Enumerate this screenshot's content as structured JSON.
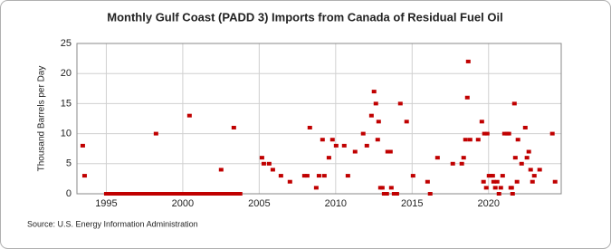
{
  "chart_data": {
    "type": "scatter",
    "title": "Monthly Gulf Coast (PADD 3) Imports from Canada of Residual Fuel Oil",
    "y_label": "Thousand Barrels per Day",
    "source": "Source: U.S. Energy Information Administration",
    "series": [
      {
        "color": "#c00000",
        "x": [
          1993.46,
          1993.58,
          1995.0,
          1995.25,
          1995.5,
          1995.75,
          1996.0,
          1996.25,
          1996.5,
          1996.75,
          1997.0,
          1997.25,
          1997.5,
          1997.75,
          1998.0,
          1998.25,
          1998.5,
          1998.75,
          1999.0,
          1999.25,
          1999.5,
          1999.75,
          2000.0,
          2000.25,
          2000.5,
          2000.75,
          2001.0,
          2001.25,
          2001.5,
          2001.75,
          2002.0,
          2002.25,
          2002.5,
          2002.75,
          2003.0,
          2003.25,
          2003.5,
          2003.75,
          1998.25,
          2000.44,
          2002.51,
          2003.34,
          2005.18,
          2005.3,
          2005.65,
          2005.89,
          2006.42,
          2007.01,
          2007.96,
          2008.14,
          2008.31,
          2008.73,
          2008.91,
          2009.14,
          2009.26,
          2009.56,
          2009.79,
          2010.03,
          2010.56,
          2010.8,
          2011.27,
          2011.8,
          2012.04,
          2012.34,
          2012.51,
          2012.63,
          2012.75,
          2012.81,
          2012.93,
          2013.05,
          2013.17,
          2013.34,
          2013.4,
          2013.58,
          2013.64,
          2013.82,
          2014.0,
          2014.23,
          2014.64,
          2015.06,
          2016.01,
          2016.18,
          2016.66,
          2017.66,
          2018.25,
          2018.37,
          2018.49,
          2018.61,
          2018.67,
          2018.79,
          2019.32,
          2019.56,
          2019.67,
          2019.73,
          2019.85,
          2019.91,
          2020.03,
          2020.15,
          2020.27,
          2020.33,
          2020.44,
          2020.56,
          2020.68,
          2020.8,
          2020.92,
          2021.04,
          2021.21,
          2021.33,
          2021.45,
          2021.51,
          2021.57,
          2021.69,
          2021.75,
          2021.86,
          2021.92,
          2022.16,
          2022.4,
          2022.51,
          2022.63,
          2022.75,
          2022.87,
          2022.99,
          2023.34,
          2024.17,
          2024.35
        ],
        "values": [
          8,
          3,
          0,
          0,
          0,
          0,
          0,
          0,
          0,
          0,
          0,
          0,
          0,
          0,
          0,
          0,
          0,
          0,
          0,
          0,
          0,
          0,
          0,
          0,
          0,
          0,
          0,
          0,
          0,
          0,
          0,
          0,
          0,
          0,
          0,
          0,
          0,
          0,
          10,
          13,
          4,
          11,
          6,
          5,
          5,
          4,
          3,
          2,
          3,
          3,
          11,
          1,
          3,
          9,
          3,
          6,
          9,
          8,
          8,
          3,
          7,
          10,
          8,
          13,
          17,
          15,
          9,
          12,
          1,
          1,
          0,
          0,
          7,
          7,
          1,
          0,
          0,
          15,
          12,
          3,
          2,
          0,
          6,
          5,
          5,
          6,
          9,
          16,
          22,
          9,
          9,
          12,
          2,
          10,
          1,
          10,
          3,
          3,
          3,
          2,
          1,
          2,
          0,
          1,
          3,
          10,
          10,
          10,
          1,
          1,
          0,
          15,
          6,
          2,
          9,
          5,
          11,
          6,
          7,
          4,
          2,
          3,
          4,
          10,
          2
        ]
      }
    ],
    "xlim": [
      1993.08,
      2024.75
    ],
    "xticks": [
      1995,
      2000,
      2005,
      2010,
      2015,
      2020
    ],
    "ylim": [
      0,
      25
    ],
    "yticks": [
      0,
      5,
      10,
      15,
      20,
      25
    ],
    "grid": true
  }
}
